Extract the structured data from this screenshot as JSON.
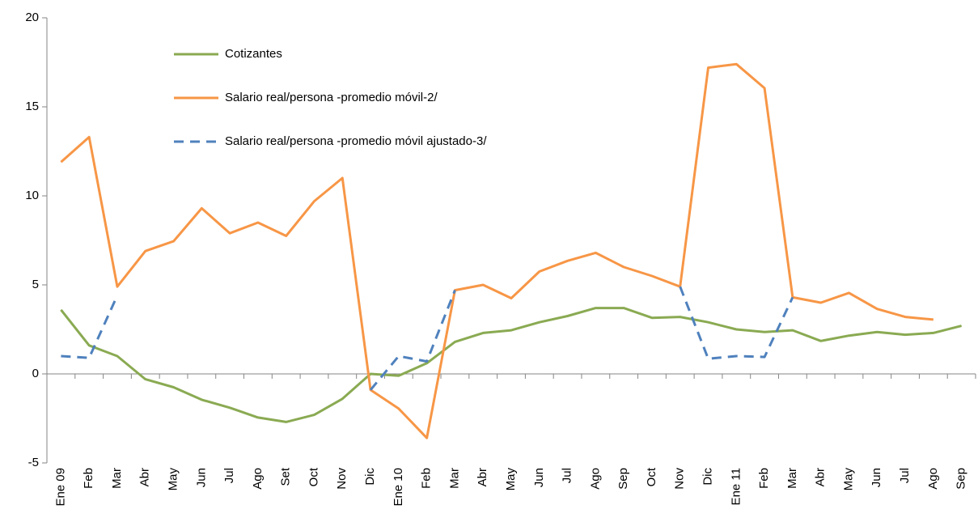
{
  "chart_data": {
    "type": "line",
    "categories": [
      "Ene 09",
      "Feb",
      "Mar",
      "Abr",
      "May",
      "Jun",
      "Jul",
      "Ago",
      "Set",
      "Oct",
      "Nov",
      "Dic",
      "Ene 10",
      "Feb",
      "Mar",
      "Abr",
      "May",
      "Jun",
      "Jul",
      "Ago",
      "Sep",
      "Oct",
      "Nov",
      "Dic",
      "Ene 11",
      "Feb",
      "Mar",
      "Abr",
      "May",
      "Jun",
      "Jul",
      "Ago",
      "Sep"
    ],
    "series": [
      {
        "name": "Cotizantes",
        "color": "#8aaa52",
        "dash": false,
        "values": [
          3.6,
          1.6,
          1.0,
          -0.3,
          -0.75,
          -1.45,
          -1.9,
          -2.45,
          -2.7,
          -2.3,
          -1.4,
          0.0,
          -0.1,
          0.6,
          1.8,
          2.3,
          2.45,
          2.9,
          3.25,
          3.7,
          3.7,
          3.15,
          3.2,
          2.9,
          2.5,
          2.35,
          2.45,
          1.85,
          2.15,
          2.35,
          2.2,
          2.3,
          2.7
        ]
      },
      {
        "name": "Salario real/persona -promedio móvil-2/",
        "color": "#f79646",
        "dash": false,
        "values": [
          11.9,
          13.3,
          4.9,
          6.9,
          7.45,
          9.3,
          7.9,
          8.5,
          7.75,
          9.7,
          11.0,
          -0.9,
          -1.95,
          -3.6,
          4.7,
          5.0,
          4.25,
          5.75,
          6.35,
          6.8,
          6.0,
          5.5,
          4.9,
          17.2,
          17.4,
          16.05,
          4.3,
          4.0,
          4.55,
          3.65,
          3.2,
          3.05,
          null
        ]
      },
      {
        "name": "Salario real/persona -promedio móvil ajustado-3/",
        "color": "#4f81bd",
        "dash": true,
        "values": [
          1.0,
          0.9,
          4.4,
          null,
          null,
          null,
          null,
          null,
          null,
          null,
          null,
          -0.9,
          1.0,
          0.7,
          4.7,
          null,
          null,
          null,
          null,
          null,
          null,
          null,
          4.9,
          0.85,
          1.0,
          0.95,
          4.3,
          null,
          null,
          null,
          null,
          null,
          null
        ]
      }
    ],
    "ylim": [
      -5,
      20
    ],
    "yticks": [
      -5,
      0,
      5,
      10,
      15,
      20
    ]
  }
}
